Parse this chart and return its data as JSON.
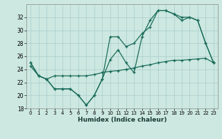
{
  "xlabel": "Humidex (Indice chaleur)",
  "background_color": "#cce8e0",
  "grid_color": "#aacccc",
  "line_color": "#1a6b5a",
  "x_values": [
    0,
    1,
    2,
    3,
    4,
    5,
    6,
    7,
    8,
    9,
    10,
    11,
    12,
    13,
    14,
    15,
    16,
    17,
    18,
    19,
    20,
    21,
    22,
    23
  ],
  "line1": [
    25.0,
    23.0,
    22.5,
    21.0,
    21.0,
    21.0,
    20.0,
    18.5,
    20.0,
    22.5,
    25.5,
    27.0,
    25.0,
    23.5,
    29.0,
    31.5,
    33.0,
    33.0,
    32.5,
    32.0,
    32.0,
    31.5,
    28.0,
    25.0
  ],
  "line2": [
    25.0,
    23.0,
    22.5,
    21.0,
    21.0,
    21.0,
    20.0,
    18.5,
    20.0,
    22.5,
    29.0,
    29.0,
    27.5,
    28.0,
    29.5,
    30.5,
    33.0,
    33.0,
    32.5,
    31.5,
    32.0,
    31.5,
    28.0,
    25.0
  ],
  "line3": [
    24.5,
    23.0,
    22.5,
    23.0,
    23.0,
    23.0,
    23.0,
    23.0,
    23.2,
    23.5,
    23.7,
    23.8,
    24.0,
    24.2,
    24.5,
    24.7,
    25.0,
    25.2,
    25.4,
    25.4,
    25.5,
    25.6,
    25.7,
    25.0
  ],
  "ylim": [
    18,
    34
  ],
  "xlim": [
    -0.5,
    23.5
  ],
  "yticks": [
    18,
    20,
    22,
    24,
    26,
    28,
    30,
    32
  ],
  "xticks": [
    0,
    1,
    2,
    3,
    4,
    5,
    6,
    7,
    8,
    9,
    10,
    11,
    12,
    13,
    14,
    15,
    16,
    17,
    18,
    19,
    20,
    21,
    22,
    23
  ]
}
